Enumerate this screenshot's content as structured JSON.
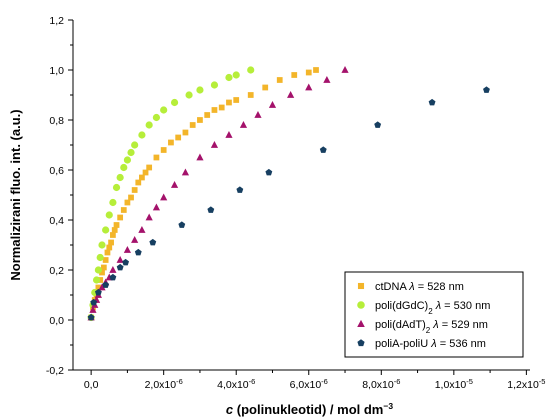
{
  "chart_data": {
    "type": "scatter",
    "xlabel_parts": [
      "c",
      " (polinukleotid) / mol dm",
      "−3"
    ],
    "ylabel": "Normalizirani fluo. int. (a.u.)",
    "xlim": [
      -5e-07,
      1.21e-05
    ],
    "ylim": [
      -0.2,
      1.2
    ],
    "x_ticks": [
      {
        "value": 0.0,
        "label": "0,0"
      },
      {
        "value": 2e-06,
        "label": "2,0x10",
        "exp": "-6"
      },
      {
        "value": 4e-06,
        "label": "4,0x10",
        "exp": "-6"
      },
      {
        "value": 6e-06,
        "label": "6,0x10",
        "exp": "-6"
      },
      {
        "value": 8e-06,
        "label": "8,0x10",
        "exp": "-6"
      },
      {
        "value": 1e-05,
        "label": "1,0x10",
        "exp": "-5"
      },
      {
        "value": 1.2e-05,
        "label": "1,2x10",
        "exp": "-5"
      }
    ],
    "y_ticks": [
      {
        "value": -0.2,
        "label": "-0,2"
      },
      {
        "value": 0.0,
        "label": "0,0"
      },
      {
        "value": 0.2,
        "label": "0,2"
      },
      {
        "value": 0.4,
        "label": "0,4"
      },
      {
        "value": 0.6,
        "label": "0,6"
      },
      {
        "value": 0.8,
        "label": "0,8"
      },
      {
        "value": 1.0,
        "label": "1,0"
      },
      {
        "value": 1.2,
        "label": "1,2"
      }
    ],
    "grid": false,
    "legend_position": "bottom-right",
    "series": [
      {
        "legend": [
          "ctDNA ",
          "λ",
          " = 528 nm"
        ],
        "marker": "square",
        "color": "#f3b52a",
        "points": [
          [
            0.0,
            0.01
          ],
          [
            5e-08,
            0.05
          ],
          [
            1e-07,
            0.08
          ],
          [
            1.5e-07,
            0.1
          ],
          [
            2e-07,
            0.13
          ],
          [
            2.5e-07,
            0.16
          ],
          [
            3e-07,
            0.19
          ],
          [
            3.5e-07,
            0.21
          ],
          [
            4e-07,
            0.24
          ],
          [
            4.5e-07,
            0.27
          ],
          [
            5e-07,
            0.29
          ],
          [
            5.5e-07,
            0.31
          ],
          [
            6e-07,
            0.34
          ],
          [
            6.5e-07,
            0.36
          ],
          [
            7e-07,
            0.38
          ],
          [
            8e-07,
            0.41
          ],
          [
            9e-07,
            0.44
          ],
          [
            1e-06,
            0.47
          ],
          [
            1.1e-06,
            0.49
          ],
          [
            1.2e-06,
            0.52
          ],
          [
            1.3e-06,
            0.55
          ],
          [
            1.4e-06,
            0.57
          ],
          [
            1.5e-06,
            0.59
          ],
          [
            1.6e-06,
            0.61
          ],
          [
            1.8e-06,
            0.65
          ],
          [
            2e-06,
            0.68
          ],
          [
            2.2e-06,
            0.71
          ],
          [
            2.4e-06,
            0.73
          ],
          [
            2.6e-06,
            0.75
          ],
          [
            2.8e-06,
            0.78
          ],
          [
            3e-06,
            0.8
          ],
          [
            3.2e-06,
            0.82
          ],
          [
            3.4e-06,
            0.84
          ],
          [
            3.6e-06,
            0.85
          ],
          [
            3.8e-06,
            0.87
          ],
          [
            4e-06,
            0.88
          ],
          [
            4.4e-06,
            0.9
          ],
          [
            4.8e-06,
            0.93
          ],
          [
            5.2e-06,
            0.96
          ],
          [
            5.6e-06,
            0.98
          ],
          [
            6e-06,
            0.99
          ],
          [
            6.2e-06,
            1.0
          ]
        ]
      },
      {
        "legend": [
          "poli(dGdC)",
          "2",
          " ",
          "λ",
          " = 530 nm"
        ],
        "marker": "circle",
        "color": "#b6ee3a",
        "points": [
          [
            0.0,
            0.01
          ],
          [
            5e-08,
            0.06
          ],
          [
            1e-07,
            0.11
          ],
          [
            1.5e-07,
            0.16
          ],
          [
            2e-07,
            0.2
          ],
          [
            2.5e-07,
            0.25
          ],
          [
            3e-07,
            0.3
          ],
          [
            4e-07,
            0.36
          ],
          [
            5e-07,
            0.42
          ],
          [
            6e-07,
            0.47
          ],
          [
            7e-07,
            0.53
          ],
          [
            8e-07,
            0.57
          ],
          [
            9e-07,
            0.61
          ],
          [
            1e-06,
            0.64
          ],
          [
            1.1e-06,
            0.67
          ],
          [
            1.2e-06,
            0.7
          ],
          [
            1.4e-06,
            0.74
          ],
          [
            1.6e-06,
            0.78
          ],
          [
            1.8e-06,
            0.81
          ],
          [
            2e-06,
            0.84
          ],
          [
            2.3e-06,
            0.87
          ],
          [
            2.7e-06,
            0.9
          ],
          [
            3e-06,
            0.92
          ],
          [
            3.4e-06,
            0.94
          ],
          [
            3.8e-06,
            0.97
          ],
          [
            4e-06,
            0.98
          ],
          [
            4.4e-06,
            1.0
          ]
        ]
      },
      {
        "legend": [
          "poli(dAdT)",
          "2",
          " ",
          "λ",
          " = 529 nm"
        ],
        "marker": "triangle",
        "color": "#a4126b",
        "points": [
          [
            0.0,
            0.01
          ],
          [
            5e-08,
            0.04
          ],
          [
            1e-07,
            0.06
          ],
          [
            1.5e-07,
            0.08
          ],
          [
            2e-07,
            0.1
          ],
          [
            3e-07,
            0.13
          ],
          [
            4e-07,
            0.15
          ],
          [
            5e-07,
            0.17
          ],
          [
            6e-07,
            0.2
          ],
          [
            8e-07,
            0.24
          ],
          [
            1e-06,
            0.28
          ],
          [
            1.2e-06,
            0.32
          ],
          [
            1.4e-06,
            0.36
          ],
          [
            1.6e-06,
            0.41
          ],
          [
            1.8e-06,
            0.45
          ],
          [
            2e-06,
            0.49
          ],
          [
            2.3e-06,
            0.54
          ],
          [
            2.6e-06,
            0.59
          ],
          [
            3e-06,
            0.65
          ],
          [
            3.4e-06,
            0.7
          ],
          [
            3.8e-06,
            0.74
          ],
          [
            4.2e-06,
            0.78
          ],
          [
            4.6e-06,
            0.82
          ],
          [
            5e-06,
            0.86
          ],
          [
            5.5e-06,
            0.9
          ],
          [
            6e-06,
            0.93
          ],
          [
            6.5e-06,
            0.96
          ],
          [
            7e-06,
            1.0
          ]
        ]
      },
      {
        "legend": [
          "poliA-poliU ",
          "λ",
          " = 536 nm"
        ],
        "marker": "pentagon",
        "color": "#173f61",
        "points": [
          [
            0.0,
            0.01
          ],
          [
            7e-08,
            0.07
          ],
          [
            2e-07,
            0.11
          ],
          [
            4e-07,
            0.14
          ],
          [
            6e-07,
            0.17
          ],
          [
            8e-07,
            0.21
          ],
          [
            9.5e-07,
            0.23
          ],
          [
            1.3e-06,
            0.27
          ],
          [
            1.7e-06,
            0.31
          ],
          [
            2.5e-06,
            0.38
          ],
          [
            3.3e-06,
            0.44
          ],
          [
            4.1e-06,
            0.52
          ],
          [
            4.9e-06,
            0.59
          ],
          [
            6.4e-06,
            0.68
          ],
          [
            7.9e-06,
            0.78
          ],
          [
            9.4e-06,
            0.87
          ],
          [
            1.09e-05,
            0.92
          ]
        ]
      }
    ]
  }
}
